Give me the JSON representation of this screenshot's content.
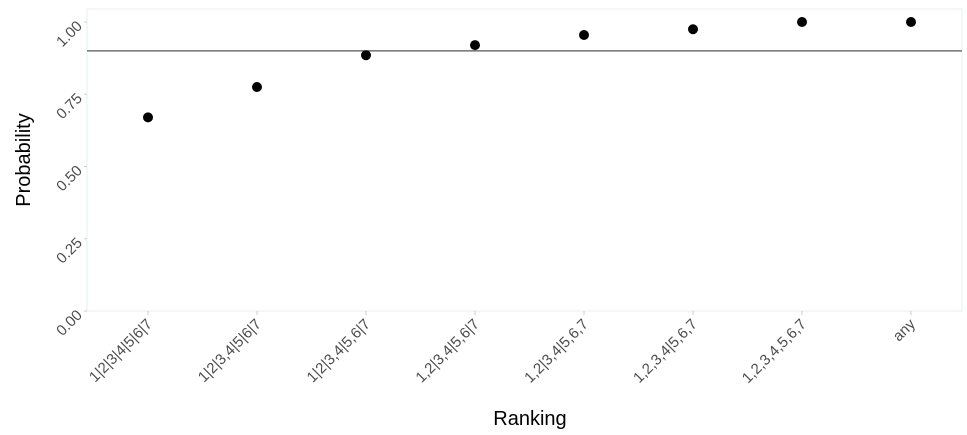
{
  "chart_data": {
    "type": "scatter",
    "xlabel": "Ranking",
    "ylabel": "Probability",
    "categories": [
      "1|2|3|4|5|6|7",
      "1|2|3,4|5|6|7",
      "1|2|3,4|5,6|7",
      "1,2|3,4|5,6|7",
      "1,2|3,4|5,6,7",
      "1,2,3,4|5,6,7",
      "1,2,3,4,5,6,7",
      "any"
    ],
    "values": [
      0.67,
      0.775,
      0.885,
      0.92,
      0.955,
      0.975,
      1.0,
      1.0
    ],
    "ylim": [
      0,
      1.0
    ],
    "yticks": [
      0.0,
      0.25,
      0.5,
      0.75,
      1.0
    ],
    "ytick_labels": [
      "0.00",
      "0.25",
      "0.50",
      "0.75",
      "1.00"
    ],
    "reference_line": 0.9,
    "grid": false,
    "colors": {
      "points": "#000000",
      "reference_line": "#555555",
      "panel_border": "#e6f2f2"
    }
  }
}
